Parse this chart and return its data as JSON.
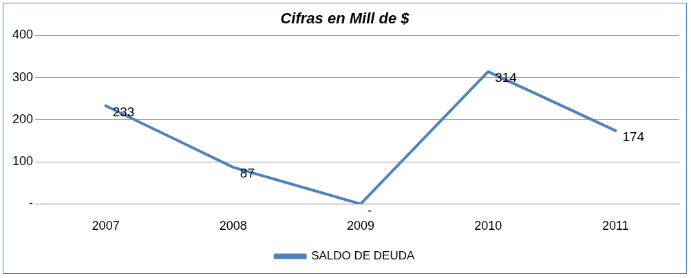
{
  "chart_data": {
    "type": "line",
    "title": "Cifras en Mill de $",
    "categories": [
      "2007",
      "2008",
      "2009",
      "2010",
      "2011"
    ],
    "series": [
      {
        "name": "SALDO DE DEUDA",
        "color": "#4f81bd",
        "values": [
          233,
          87,
          0,
          314,
          174
        ],
        "value_labels": [
          "233",
          "87",
          "-",
          "314",
          "174"
        ]
      }
    ],
    "ylim": [
      0,
      400
    ],
    "yticks": [
      {
        "value": 0,
        "label": "-"
      },
      100,
      200,
      300,
      400
    ],
    "grid": "y",
    "legend": "bottom",
    "marker": "none",
    "line_style": "solid"
  }
}
